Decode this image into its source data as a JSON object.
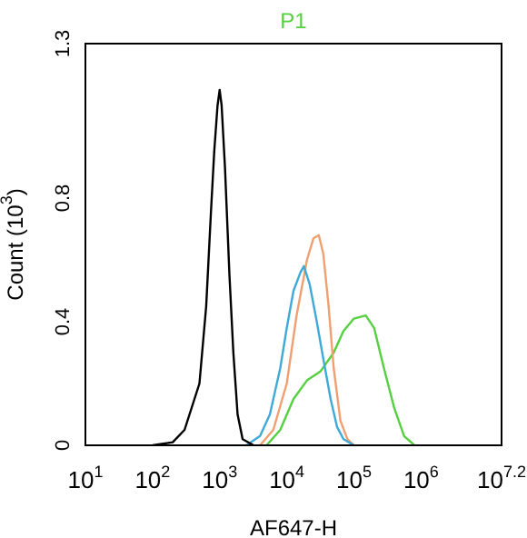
{
  "chart_data": {
    "type": "line",
    "title": "P1",
    "xlabel": "AF647-H",
    "ylabel": "Count (10$^{3}$)",
    "log": "x",
    "xlim": [
      10,
      15848932
    ],
    "xticks": [
      {
        "value": 10,
        "label": "10$^{1}$"
      },
      {
        "value": 100,
        "label": "10$^{2}$"
      },
      {
        "value": 1000,
        "label": "10$^{3}$"
      },
      {
        "value": 10000,
        "label": "10$^{4}$"
      },
      {
        "value": 100000,
        "label": "10$^{5}$"
      },
      {
        "value": 1000000,
        "label": "10$^{6}$"
      },
      {
        "value": 15848932,
        "label": "10$^{7.2}$"
      }
    ],
    "ylim": [
      0,
      1.3
    ],
    "yticks": [
      0,
      0.4,
      0.8,
      1.3
    ],
    "grid": false,
    "legend": false,
    "marker": "none",
    "line_style": "solid",
    "series": [
      {
        "color": "#000000",
        "x": [
          100,
          200,
          300,
          500,
          630,
          740,
          830,
          930,
          1000,
          1070,
          1200,
          1400,
          1600,
          1850,
          2200,
          3200
        ],
        "values": [
          0,
          0.01,
          0.05,
          0.2,
          0.45,
          0.75,
          0.95,
          1.1,
          1.15,
          1.1,
          0.9,
          0.55,
          0.3,
          0.1,
          0.02,
          0
        ]
      },
      {
        "color": "#3fa9d8",
        "x": [
          2500,
          4000,
          5600,
          8000,
          10000,
          12600,
          16000,
          18000,
          22000,
          28000,
          35000,
          45000,
          56000,
          70000,
          100000
        ],
        "values": [
          0,
          0.03,
          0.1,
          0.25,
          0.38,
          0.5,
          0.56,
          0.58,
          0.52,
          0.4,
          0.28,
          0.15,
          0.06,
          0.02,
          0
        ]
      },
      {
        "color": "#f0a070",
        "x": [
          4000,
          6300,
          10000,
          14000,
          20000,
          25000,
          30000,
          35000,
          42000,
          50000,
          63000,
          80000,
          100000
        ],
        "values": [
          0,
          0.05,
          0.2,
          0.42,
          0.6,
          0.67,
          0.68,
          0.62,
          0.45,
          0.25,
          0.08,
          0.02,
          0
        ]
      },
      {
        "color": "#55d040",
        "x": [
          5000,
          8000,
          12600,
          20000,
          32000,
          50000,
          70000,
          100000,
          150000,
          200000,
          280000,
          400000,
          560000,
          800000
        ],
        "values": [
          0,
          0.05,
          0.15,
          0.21,
          0.24,
          0.3,
          0.37,
          0.41,
          0.42,
          0.38,
          0.25,
          0.12,
          0.03,
          0
        ]
      }
    ]
  }
}
